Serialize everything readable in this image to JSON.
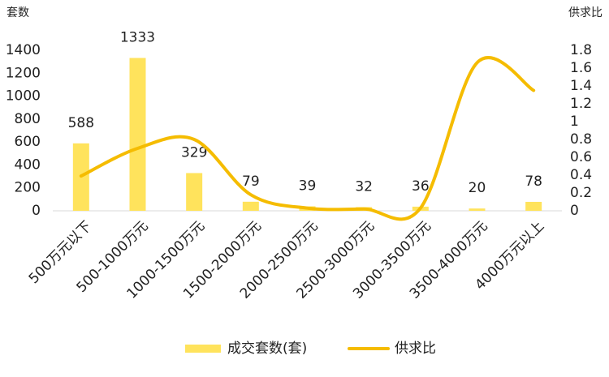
{
  "chart_data": {
    "type": "bar",
    "y_label": "套数",
    "y2_label": "供求比",
    "categories": [
      "500万元以下",
      "500-1000万元",
      "1000-1500万元",
      "1500-2000万元",
      "2000-2500万元",
      "2500-3000万元",
      "3000-3500万元",
      "3500-4000万元",
      "4000万元以上"
    ],
    "series": [
      {
        "name": "成交套数(套)",
        "type": "bar",
        "color": "#FFE35C",
        "values": [
          588,
          1333,
          329,
          79,
          39,
          32,
          36,
          20,
          78
        ]
      },
      {
        "name": "供求比",
        "type": "line",
        "axis": "y2",
        "color": "#F5BC00",
        "values": [
          0.39,
          0.7,
          0.8,
          0.18,
          0.03,
          0.02,
          0.03,
          1.66,
          1.35
        ]
      }
    ],
    "ylim": [
      0,
      1400
    ],
    "yticks": [
      0,
      200,
      400,
      600,
      800,
      1000,
      1200,
      1400
    ],
    "y2lim": [
      0,
      1.8
    ],
    "y2ticks": [
      0,
      0.2,
      0.4,
      0.6,
      0.8,
      1,
      1.2,
      1.4,
      1.6,
      1.8
    ],
    "legend": "bottom"
  }
}
